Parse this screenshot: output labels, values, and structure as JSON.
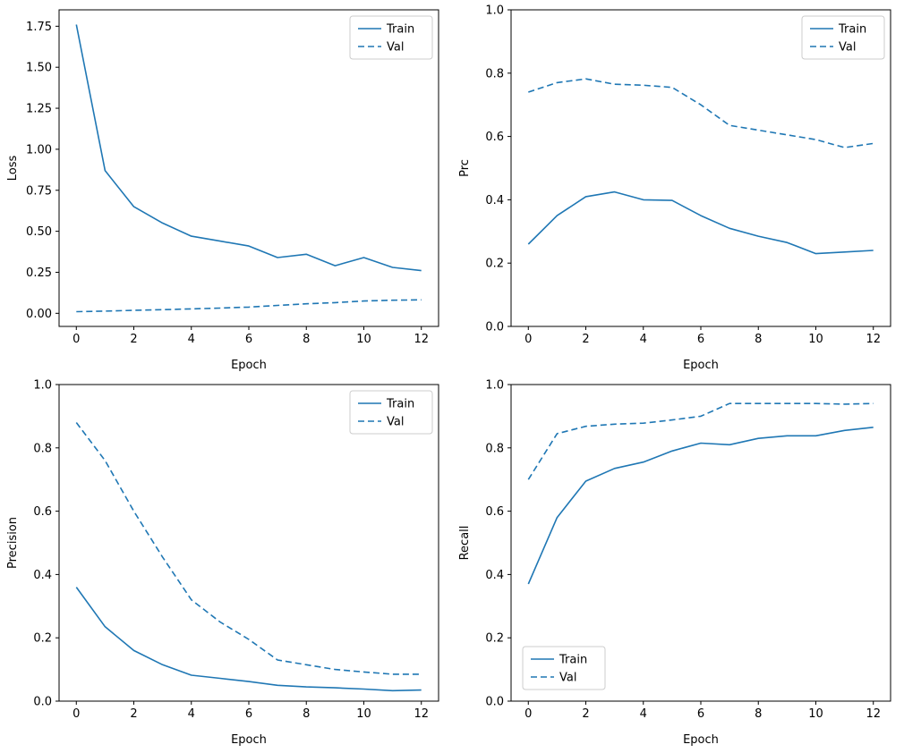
{
  "figure": {
    "background": "#ffffff",
    "line_color": "#1f77b4",
    "axis_color": "#000000",
    "legend_border_color": "#cccccc"
  },
  "chart_data": [
    {
      "type": "line",
      "name": "loss-chart",
      "title": "",
      "xlabel": "Epoch",
      "ylabel": "Loss",
      "x": [
        0,
        1,
        2,
        3,
        4,
        5,
        6,
        7,
        8,
        9,
        10,
        11,
        12
      ],
      "series": [
        {
          "name": "Train",
          "style": "solid",
          "values": [
            1.76,
            0.87,
            0.65,
            0.55,
            0.47,
            0.44,
            0.41,
            0.34,
            0.36,
            0.29,
            0.34,
            0.28,
            0.26
          ]
        },
        {
          "name": "Val",
          "style": "dashed",
          "values": [
            0.01,
            0.013,
            0.018,
            0.022,
            0.027,
            0.032,
            0.038,
            0.048,
            0.058,
            0.065,
            0.075,
            0.08,
            0.082
          ]
        }
      ],
      "xlim": [
        -0.6,
        12.6
      ],
      "ylim": [
        -0.08,
        1.85
      ],
      "xticks": [
        0,
        2,
        4,
        6,
        8,
        10,
        12
      ],
      "xtick_labels": [
        "0",
        "2",
        "4",
        "6",
        "8",
        "10",
        "12"
      ],
      "yticks": [
        0,
        0.25,
        0.5,
        0.75,
        1.0,
        1.25,
        1.5,
        1.75
      ],
      "ytick_labels": [
        "0.00",
        "0.25",
        "0.50",
        "0.75",
        "1.00",
        "1.25",
        "1.50",
        "1.75"
      ],
      "grid": false,
      "legend": {
        "position": "upper-right",
        "entries": [
          "Train",
          "Val"
        ]
      }
    },
    {
      "type": "line",
      "name": "prc-chart",
      "title": "",
      "xlabel": "Epoch",
      "ylabel": "Prc",
      "x": [
        0,
        1,
        2,
        3,
        4,
        5,
        6,
        7,
        8,
        9,
        10,
        11,
        12
      ],
      "series": [
        {
          "name": "Train",
          "style": "solid",
          "values": [
            0.26,
            0.35,
            0.41,
            0.425,
            0.4,
            0.398,
            0.35,
            0.31,
            0.285,
            0.265,
            0.23,
            0.235,
            0.24
          ]
        },
        {
          "name": "Val",
          "style": "dashed",
          "values": [
            0.74,
            0.77,
            0.782,
            0.765,
            0.762,
            0.755,
            0.7,
            0.635,
            0.62,
            0.605,
            0.59,
            0.565,
            0.578
          ]
        }
      ],
      "xlim": [
        -0.6,
        12.6
      ],
      "ylim": [
        0,
        1.0
      ],
      "xticks": [
        0,
        2,
        4,
        6,
        8,
        10,
        12
      ],
      "xtick_labels": [
        "0",
        "2",
        "4",
        "6",
        "8",
        "10",
        "12"
      ],
      "yticks": [
        0,
        0.2,
        0.4,
        0.6,
        0.8,
        1.0
      ],
      "ytick_labels": [
        "0.0",
        "0.2",
        "0.4",
        "0.6",
        "0.8",
        "1.0"
      ],
      "grid": false,
      "legend": {
        "position": "upper-right",
        "entries": [
          "Train",
          "Val"
        ]
      }
    },
    {
      "type": "line",
      "name": "precision-chart",
      "title": "",
      "xlabel": "Epoch",
      "ylabel": "Precision",
      "x": [
        0,
        1,
        2,
        3,
        4,
        5,
        6,
        7,
        8,
        9,
        10,
        11,
        12
      ],
      "series": [
        {
          "name": "Train",
          "style": "solid",
          "values": [
            0.36,
            0.235,
            0.16,
            0.115,
            0.082,
            0.072,
            0.062,
            0.05,
            0.045,
            0.042,
            0.038,
            0.033,
            0.035
          ]
        },
        {
          "name": "Val",
          "style": "dashed",
          "values": [
            0.88,
            0.76,
            0.6,
            0.455,
            0.32,
            0.25,
            0.195,
            0.13,
            0.115,
            0.1,
            0.092,
            0.085,
            0.085
          ]
        }
      ],
      "xlim": [
        -0.6,
        12.6
      ],
      "ylim": [
        0,
        1.0
      ],
      "xticks": [
        0,
        2,
        4,
        6,
        8,
        10,
        12
      ],
      "xtick_labels": [
        "0",
        "2",
        "4",
        "6",
        "8",
        "10",
        "12"
      ],
      "yticks": [
        0,
        0.2,
        0.4,
        0.6,
        0.8,
        1.0
      ],
      "ytick_labels": [
        "0.0",
        "0.2",
        "0.4",
        "0.6",
        "0.8",
        "1.0"
      ],
      "grid": false,
      "legend": {
        "position": "upper-right",
        "entries": [
          "Train",
          "Val"
        ]
      }
    },
    {
      "type": "line",
      "name": "recall-chart",
      "title": "",
      "xlabel": "Epoch",
      "ylabel": "Recall",
      "x": [
        0,
        1,
        2,
        3,
        4,
        5,
        6,
        7,
        8,
        9,
        10,
        11,
        12
      ],
      "series": [
        {
          "name": "Train",
          "style": "solid",
          "values": [
            0.37,
            0.58,
            0.695,
            0.735,
            0.755,
            0.79,
            0.815,
            0.81,
            0.83,
            0.838,
            0.838,
            0.855,
            0.865
          ]
        },
        {
          "name": "Val",
          "style": "dashed",
          "values": [
            0.7,
            0.845,
            0.868,
            0.875,
            0.878,
            0.888,
            0.9,
            0.94,
            0.94,
            0.94,
            0.94,
            0.938,
            0.94
          ]
        }
      ],
      "xlim": [
        -0.6,
        12.6
      ],
      "ylim": [
        0,
        1.0
      ],
      "xticks": [
        0,
        2,
        4,
        6,
        8,
        10,
        12
      ],
      "xtick_labels": [
        "0",
        "2",
        "4",
        "6",
        "8",
        "10",
        "12"
      ],
      "yticks": [
        0,
        0.2,
        0.4,
        0.6,
        0.8,
        1.0
      ],
      "ytick_labels": [
        "0.0",
        "0.2",
        "0.4",
        "0.6",
        "0.8",
        "1.0"
      ],
      "grid": false,
      "legend": {
        "position": "lower-left",
        "entries": [
          "Train",
          "Val"
        ]
      }
    }
  ]
}
